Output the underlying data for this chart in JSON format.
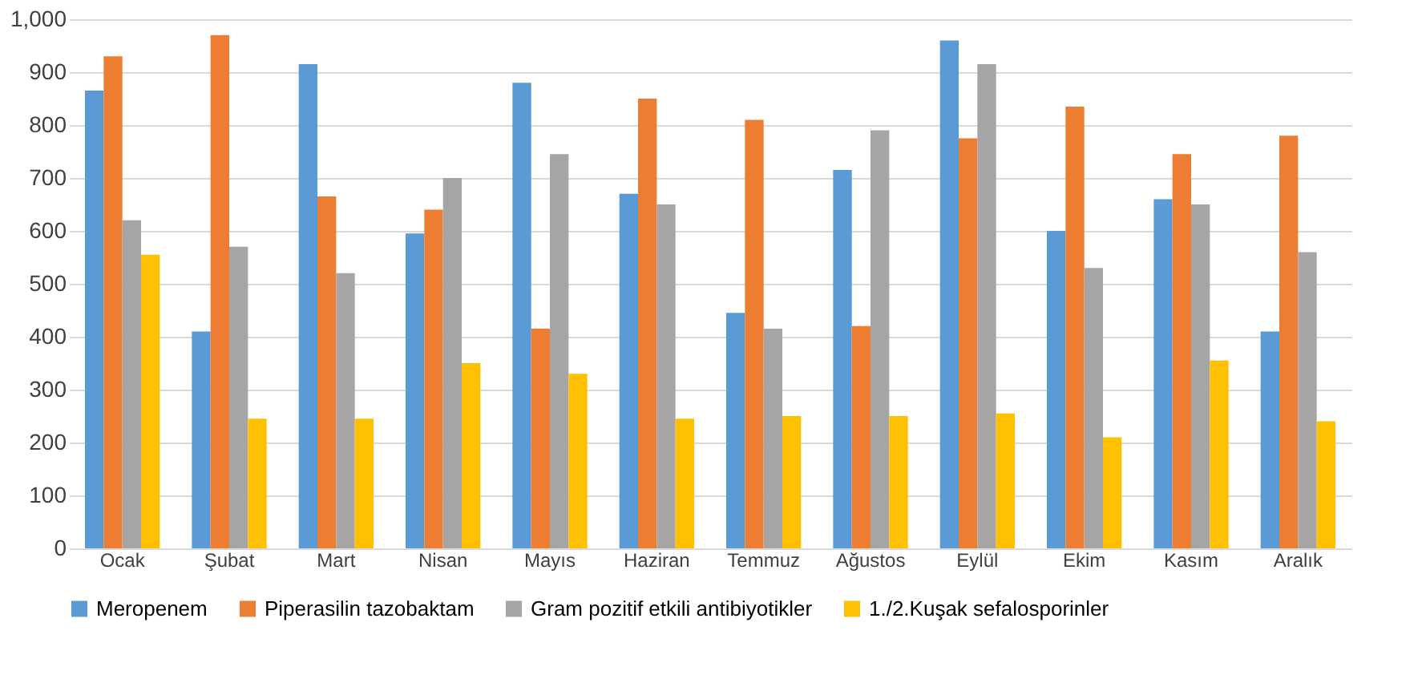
{
  "chart_data": {
    "type": "bar",
    "categories": [
      "Ocak",
      "Şubat",
      "Mart",
      "Nisan",
      "Mayıs",
      "Haziran",
      "Temmuz",
      "Ağustos",
      "Eylül",
      "Ekim",
      "Kasım",
      "Aralık"
    ],
    "series": [
      {
        "name": "Meropenem",
        "color": "#5b9bd5",
        "values": [
          865,
          410,
          915,
          595,
          880,
          670,
          445,
          715,
          960,
          600,
          660,
          410
        ]
      },
      {
        "name": "Piperasilin tazobaktam",
        "color": "#ed7d31",
        "values": [
          930,
          970,
          665,
          640,
          415,
          850,
          810,
          420,
          775,
          835,
          745,
          780
        ]
      },
      {
        "name": "Gram pozitif etkili antibiyotikler",
        "color": "#a5a5a5",
        "values": [
          620,
          570,
          520,
          700,
          745,
          650,
          415,
          790,
          915,
          530,
          650,
          560
        ]
      },
      {
        "name": "1./2.Kuşak sefalosporinler",
        "color": "#ffc000",
        "values": [
          555,
          245,
          245,
          350,
          330,
          245,
          250,
          250,
          255,
          210,
          355,
          240
        ]
      }
    ],
    "ylim": [
      0,
      1000
    ],
    "yticks": [
      0,
      100,
      200,
      300,
      400,
      500,
      600,
      700,
      800,
      900,
      {
        "value": 1000,
        "label": "1,000"
      }
    ],
    "grid": "y",
    "legend": "bottom"
  }
}
